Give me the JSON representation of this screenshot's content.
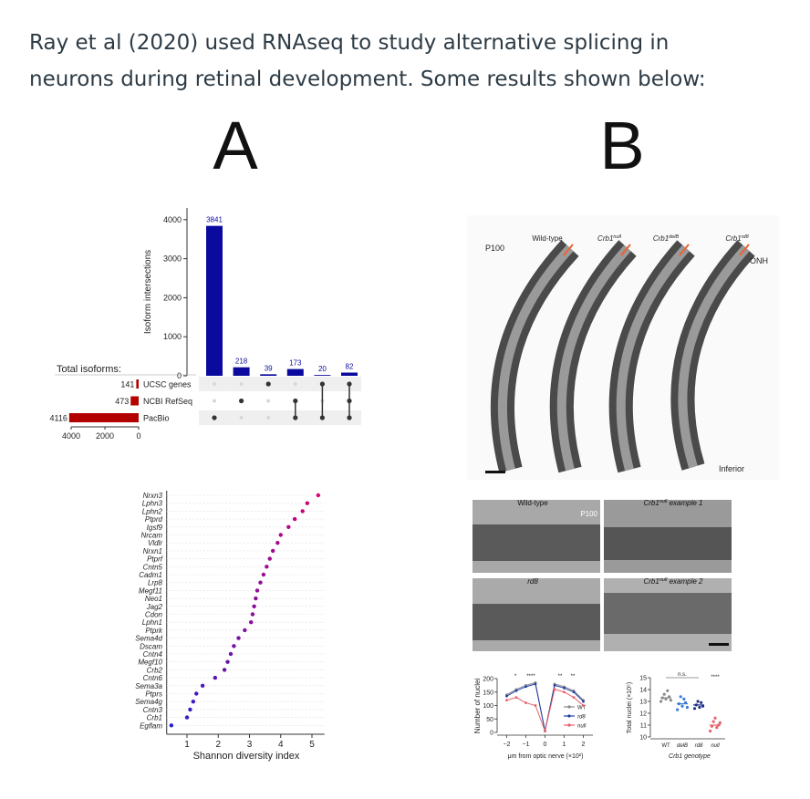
{
  "question": [
    "Ray et al (2020) used RNAseq to study alternative splicing in",
    "neurons during retinal development. Some results shown below:"
  ],
  "panel_a": {
    "label": "A",
    "upset": {
      "type": "bar",
      "ylabel": "Isoform intersections",
      "values": [
        3841,
        218,
        39,
        173,
        20,
        82
      ],
      "color": "#0a0a9e",
      "ylim": [
        0,
        4300
      ],
      "yticks": [
        0,
        1000,
        2000,
        3000,
        4000
      ],
      "sets_title": "Total isoforms:",
      "sets": [
        "UCSC genes",
        "NCBI RefSeq",
        "PacBio"
      ],
      "set_sizes": [
        141,
        473,
        4116
      ],
      "set_color": "#b30000",
      "set_xlim": [
        0,
        4000
      ],
      "set_xticks": [
        4000,
        2000,
        0
      ],
      "memberships": [
        [
          2
        ],
        [
          1
        ],
        [
          0
        ],
        [
          1,
          2
        ],
        [
          0,
          2
        ],
        [
          0,
          1,
          2
        ]
      ]
    },
    "diversity": {
      "type": "scatter",
      "xlabel": "Shannon diversity index",
      "categories": [
        "Nrxn3",
        "Lphn3",
        "Lphn2",
        "Ptprd",
        "Igsf9",
        "Nrcam",
        "Vldlr",
        "Nrxn1",
        "Ptprf",
        "Cntn5",
        "Cadm1",
        "Lrp8",
        "Megf11",
        "Neo1",
        "Jag2",
        "Cdon",
        "Lphn1",
        "Ptprk",
        "Sema4d",
        "Dscam",
        "Cntn4",
        "Megf10",
        "Crb2",
        "Cntn6",
        "Sema3a",
        "Ptprs",
        "Sema4g",
        "Cntn3",
        "Crb1",
        "Egflam"
      ],
      "values": [
        5.2,
        4.85,
        4.7,
        4.45,
        4.25,
        4.0,
        3.9,
        3.75,
        3.65,
        3.55,
        3.45,
        3.35,
        3.25,
        3.2,
        3.15,
        3.1,
        3.05,
        2.85,
        2.65,
        2.5,
        2.4,
        2.3,
        2.2,
        1.9,
        1.5,
        1.3,
        1.2,
        1.1,
        1.0,
        0.5
      ],
      "xlim": [
        0.35,
        5.4
      ],
      "xticks": [
        1,
        2,
        3,
        4,
        5
      ],
      "color_low": "#2020d0",
      "color_high": "#e0006e"
    }
  },
  "panel_b": {
    "label": "B",
    "overview": {
      "stage": "P100",
      "genotypes": [
        "Wild-type",
        {
          "base": "Crb1",
          "sup": "null"
        },
        {
          "base": "Crb1",
          "sup": "delB"
        },
        {
          "base": "Crb1",
          "sup": "rd8"
        }
      ],
      "onh": "ONH",
      "inferior": "Inferior"
    },
    "detail": {
      "labels": [
        "Wild-type",
        {
          "base": "Crb1",
          "sup": "null",
          "rest": " example 1"
        },
        "rd8",
        {
          "base": "Crb1",
          "sup": "null",
          "rest": " example 2"
        }
      ],
      "stage": "P100"
    },
    "nuclei_profile": {
      "type": "line",
      "ylabel": "Number of nuclei",
      "xlabel": "μm from optic nerve (×10²)",
      "x": [
        -2,
        -1.5,
        -1,
        -0.5,
        0,
        0.5,
        1,
        1.5,
        2
      ],
      "series": [
        {
          "name": "WT",
          "color": "#8a8a8a",
          "values": [
            140,
            160,
            175,
            185,
            5,
            180,
            170,
            155,
            120
          ]
        },
        {
          "name": "rd8",
          "color": "#1f3fa8",
          "values": [
            135,
            155,
            170,
            180,
            5,
            175,
            165,
            150,
            115
          ]
        },
        {
          "name": "null",
          "color": "#e8606a",
          "values": [
            120,
            130,
            110,
            100,
            5,
            160,
            150,
            130,
            100
          ]
        }
      ],
      "xlim": [
        -2.5,
        2.5
      ],
      "xticks": [
        {
          "value": -2,
          "label": "−2"
        },
        {
          "value": -1,
          "label": "−1"
        },
        0,
        1,
        2
      ],
      "ylim": [
        0,
        200
      ],
      "yticks": [
        0,
        50,
        100,
        150,
        200
      ],
      "annotations": [
        "*",
        "****",
        "**",
        "**"
      ]
    },
    "total_nuclei": {
      "type": "scatter",
      "ylabel": "Total nuclei (×10⁵)",
      "xlabel": "Crb1 genotype",
      "categories": [
        "WT",
        "delB",
        "rd8",
        "null"
      ],
      "colors": [
        "#8a8a8a",
        "#3a7bd5",
        "#1f2f88",
        "#e8606a"
      ],
      "points": [
        [
          13.0,
          13.3,
          13.6,
          13.2,
          13.9,
          13.4,
          13.1
        ],
        [
          12.3,
          12.8,
          13.4,
          12.6,
          13.2,
          12.9,
          12.5
        ],
        [
          12.4,
          12.7,
          13.0,
          12.5,
          12.9,
          12.6
        ],
        [
          10.5,
          10.9,
          11.3,
          11.6,
          10.8,
          11.0,
          11.2
        ]
      ],
      "means": [
        13.3,
        12.8,
        12.7,
        11.0
      ],
      "ylim": [
        10,
        15
      ],
      "yticks": [
        10,
        11,
        12,
        13,
        14,
        15
      ],
      "annotations": [
        "n.s.",
        "****"
      ]
    }
  }
}
